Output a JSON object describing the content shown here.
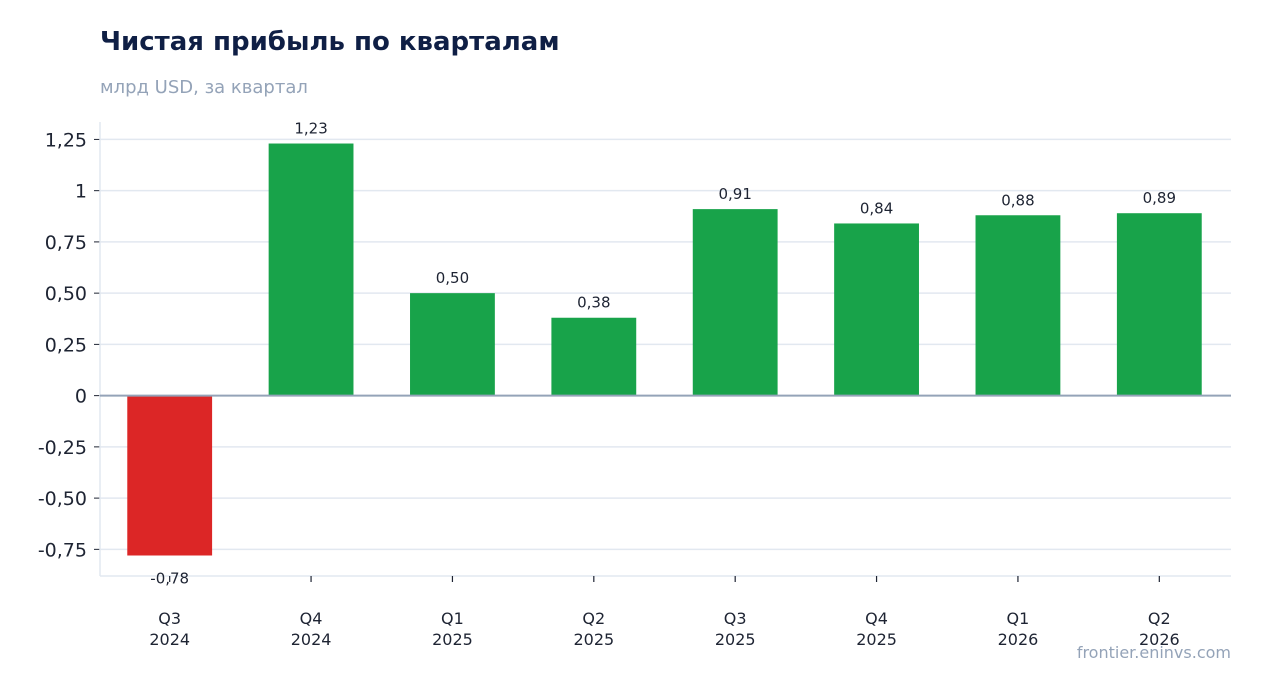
{
  "chart_data": {
    "type": "bar",
    "title": "Чистая прибыль по кварталам",
    "subtitle": "млрд USD, за квартал",
    "xlabel": "",
    "ylabel": "",
    "categories": [
      [
        "Q3",
        "2024"
      ],
      [
        "Q4",
        "2024"
      ],
      [
        "Q1",
        "2025"
      ],
      [
        "Q2",
        "2025"
      ],
      [
        "Q3",
        "2025"
      ],
      [
        "Q4",
        "2025"
      ],
      [
        "Q1",
        "2026"
      ],
      [
        "Q2",
        "2026"
      ]
    ],
    "values": [
      -0.78,
      1.23,
      0.5,
      0.38,
      0.91,
      0.84,
      0.88,
      0.89
    ],
    "data_labels": [
      "-0,78",
      "1,23",
      "0,50",
      "0,38",
      "0,91",
      "0,84",
      "0,88",
      "0,89"
    ],
    "ylim": [
      -0.88,
      1.335
    ],
    "yticks": [
      1.25,
      1,
      0.75,
      0.5,
      0.25,
      0,
      -0.25,
      -0.5,
      -0.75
    ],
    "ytick_labels": [
      "1,25",
      "1",
      "0,75",
      "0,50",
      "0,25",
      "0",
      "-0,25",
      "-0,50",
      "-0,75"
    ],
    "grid": true,
    "colors": {
      "positive": "#18a34a",
      "negative": "#dc2626",
      "grid": "#e2e8f0",
      "zero_line": "#94a3b8"
    }
  },
  "footer": {
    "source": "frontier.eninvs.com"
  }
}
